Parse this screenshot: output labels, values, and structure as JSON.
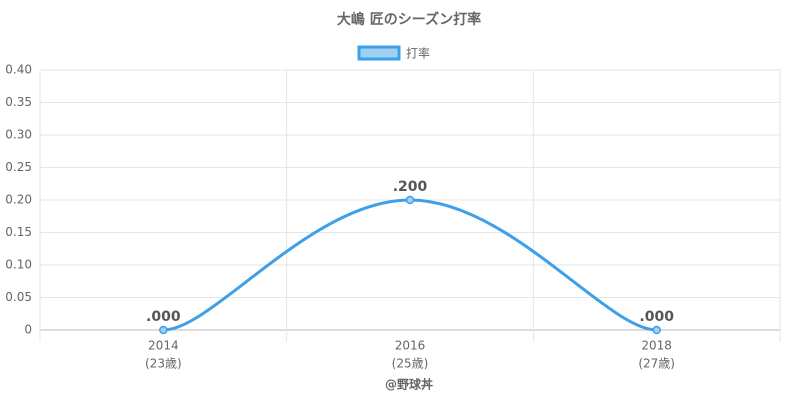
{
  "chart_data": {
    "type": "line",
    "title": "大嶋 匠のシーズン打率",
    "categories": [
      "2014",
      "2016",
      "2018"
    ],
    "category_sublabels": [
      "(23歳)",
      "(25歳)",
      "(27歳)"
    ],
    "series": [
      {
        "name": "打率",
        "color": "#3ea0e8",
        "fill": "#9fd0f5",
        "values": [
          0,
          0.2,
          0
        ],
        "value_labels": [
          ".000",
          ".200",
          ".000"
        ]
      }
    ],
    "ylim": [
      0,
      0.4
    ],
    "yticks": [
      0,
      0.05,
      {
        "value": 0.1,
        "label": "0.10"
      },
      0.15,
      {
        "value": 0.2,
        "label": "0.20"
      },
      0.25,
      {
        "value": 0.3,
        "label": "0.30"
      },
      0.35,
      {
        "value": 0.4,
        "label": "0.40"
      }
    ],
    "grid": true,
    "legend": "top",
    "footer": "@野球丼"
  }
}
